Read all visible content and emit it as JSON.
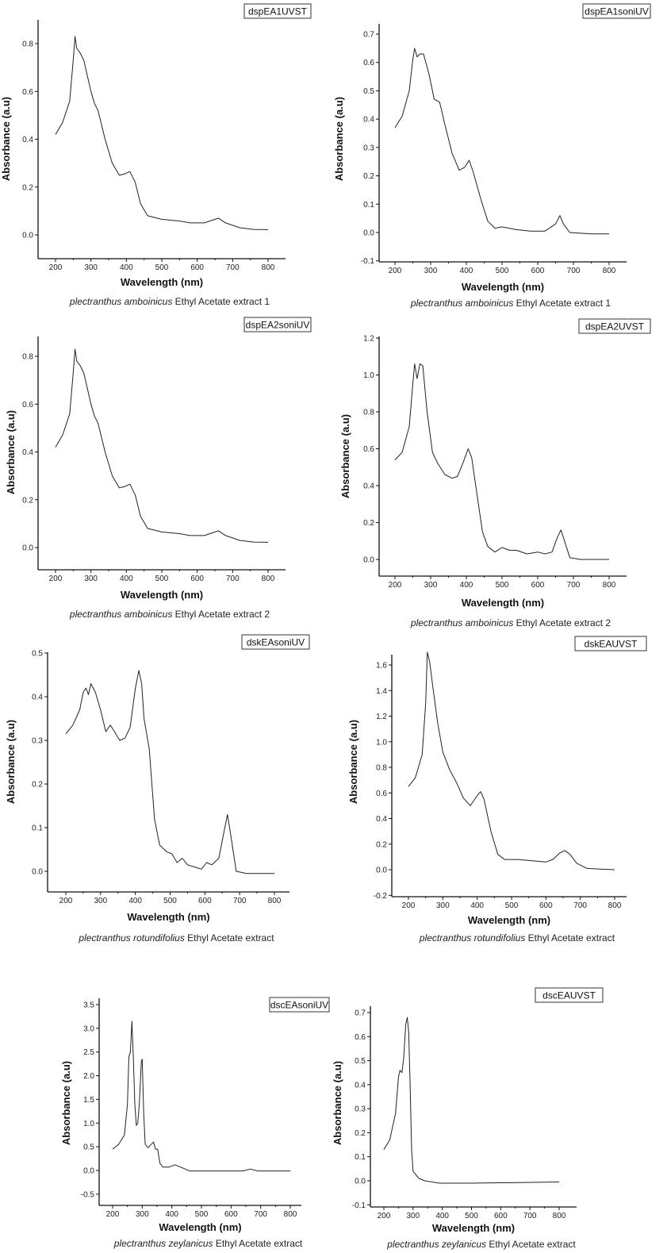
{
  "chart_data": [
    {
      "type": "line",
      "legend": "dspEA1UVST",
      "xlabel": "Wavelength (nm)",
      "ylabel": "Absorbance (a.u)",
      "caption_species": "plectranthus  amboinicus",
      "caption_rest": " Ethyl Acetate extract 1",
      "xticks": [
        200,
        300,
        400,
        500,
        600,
        700,
        800
      ],
      "yticks": [
        0.0,
        0.2,
        0.4,
        0.6,
        0.8
      ],
      "xlim": [
        150,
        850
      ],
      "ylim": [
        -0.1,
        0.9
      ],
      "legend_position": "top-right",
      "grid": false,
      "x": [
        200,
        220,
        240,
        250,
        255,
        260,
        270,
        280,
        300,
        310,
        320,
        340,
        360,
        380,
        395,
        410,
        425,
        440,
        460,
        500,
        550,
        580,
        620,
        640,
        660,
        680,
        720,
        760,
        800
      ],
      "y": [
        0.42,
        0.47,
        0.56,
        0.73,
        0.83,
        0.78,
        0.76,
        0.73,
        0.6,
        0.55,
        0.52,
        0.4,
        0.3,
        0.25,
        0.255,
        0.265,
        0.22,
        0.13,
        0.08,
        0.065,
        0.058,
        0.05,
        0.05,
        0.06,
        0.07,
        0.05,
        0.03,
        0.023,
        0.022
      ]
    },
    {
      "type": "line",
      "legend": "dspEA1soniUV",
      "xlabel": "Wavelength (nm)",
      "ylabel": "Absorbance (a.u)",
      "caption_species": "plectranthus  amboinicus",
      "caption_rest": " Ethyl Acetate extract 1",
      "xticks": [
        200,
        300,
        400,
        500,
        600,
        700,
        800
      ],
      "yticks": [
        -0.1,
        0.0,
        0.1,
        0.2,
        0.3,
        0.4,
        0.5,
        0.6,
        0.7
      ],
      "xlim": [
        150,
        850
      ],
      "ylim": [
        -0.1,
        0.75
      ],
      "legend_position": "top-right",
      "grid": false,
      "x": [
        200,
        220,
        240,
        250,
        255,
        262,
        270,
        280,
        295,
        310,
        325,
        340,
        360,
        380,
        395,
        408,
        420,
        440,
        460,
        480,
        500,
        540,
        580,
        620,
        650,
        662,
        672,
        690,
        750,
        800
      ],
      "y": [
        0.37,
        0.41,
        0.5,
        0.61,
        0.65,
        0.62,
        0.63,
        0.63,
        0.56,
        0.47,
        0.46,
        0.38,
        0.28,
        0.22,
        0.23,
        0.255,
        0.21,
        0.12,
        0.04,
        0.015,
        0.02,
        0.01,
        0.005,
        0.005,
        0.03,
        0.06,
        0.03,
        0.0,
        -0.005,
        -0.005
      ]
    },
    {
      "type": "line",
      "legend": "dspEA2soniUV",
      "xlabel": "Wavelength (nm)",
      "ylabel": "Absorbance (a.u)",
      "caption_species": "plectranthus  amboinicus",
      "caption_rest": " Ethyl Acetate extract 2",
      "xticks": [
        200,
        300,
        400,
        500,
        600,
        700,
        800
      ],
      "yticks": [
        0.0,
        0.2,
        0.4,
        0.6,
        0.8
      ],
      "xlim": [
        150,
        850
      ],
      "ylim": [
        -0.1,
        0.9
      ],
      "legend_position": "top-right",
      "grid": false,
      "x": [
        200,
        220,
        240,
        250,
        255,
        260,
        270,
        280,
        300,
        310,
        320,
        340,
        360,
        380,
        395,
        410,
        425,
        440,
        460,
        500,
        550,
        580,
        620,
        640,
        660,
        680,
        720,
        760,
        800
      ],
      "y": [
        0.42,
        0.47,
        0.56,
        0.73,
        0.83,
        0.78,
        0.76,
        0.73,
        0.6,
        0.55,
        0.52,
        0.4,
        0.3,
        0.25,
        0.255,
        0.265,
        0.22,
        0.13,
        0.08,
        0.065,
        0.058,
        0.05,
        0.05,
        0.06,
        0.07,
        0.05,
        0.03,
        0.023,
        0.022
      ]
    },
    {
      "type": "line",
      "legend": "dspEA2UVST",
      "xlabel": "Wavelength (nm)",
      "ylabel": "Absorbance (a.u)",
      "caption_species": "plectranthus  amboinicus",
      "caption_rest": " Ethyl Acetate extract 2",
      "xticks": [
        200,
        300,
        400,
        500,
        600,
        700,
        800
      ],
      "yticks": [
        0.0,
        0.2,
        0.4,
        0.6,
        0.8,
        1.0,
        1.2
      ],
      "xlim": [
        150,
        850
      ],
      "ylim": [
        -0.1,
        1.25
      ],
      "legend_position": "top-right",
      "grid": false,
      "x": [
        200,
        220,
        240,
        250,
        255,
        262,
        270,
        278,
        290,
        305,
        320,
        340,
        360,
        375,
        390,
        405,
        415,
        430,
        445,
        460,
        480,
        500,
        520,
        540,
        570,
        600,
        620,
        640,
        655,
        665,
        675,
        690,
        720,
        800
      ],
      "y": [
        0.54,
        0.58,
        0.72,
        0.95,
        1.06,
        0.98,
        1.06,
        1.05,
        0.8,
        0.58,
        0.52,
        0.46,
        0.44,
        0.45,
        0.52,
        0.6,
        0.55,
        0.35,
        0.15,
        0.07,
        0.04,
        0.065,
        0.05,
        0.05,
        0.03,
        0.04,
        0.03,
        0.04,
        0.12,
        0.16,
        0.1,
        0.01,
        0.0,
        0.0
      ]
    },
    {
      "type": "line",
      "legend": "dskEAsoniUV",
      "xlabel": "Wavelength (nm)",
      "ylabel": "Absorbance (a.u)",
      "caption_species": "plectranthus  rotundifolius",
      "caption_rest": " Ethyl Acetate extract",
      "xticks": [
        200,
        300,
        400,
        500,
        600,
        700,
        800
      ],
      "yticks": [
        0.0,
        0.1,
        0.2,
        0.3,
        0.4,
        0.5
      ],
      "xlim": [
        150,
        850
      ],
      "ylim": [
        -0.05,
        0.52
      ],
      "legend_position": "top-right",
      "grid": false,
      "x": [
        200,
        220,
        240,
        250,
        258,
        265,
        272,
        285,
        300,
        315,
        328,
        340,
        355,
        370,
        385,
        400,
        410,
        418,
        425,
        440,
        455,
        470,
        490,
        505,
        520,
        535,
        550,
        570,
        590,
        605,
        620,
        640,
        655,
        665,
        675,
        690,
        720,
        800
      ],
      "y": [
        0.315,
        0.335,
        0.37,
        0.41,
        0.42,
        0.405,
        0.43,
        0.41,
        0.37,
        0.32,
        0.335,
        0.32,
        0.3,
        0.305,
        0.33,
        0.42,
        0.46,
        0.43,
        0.35,
        0.28,
        0.12,
        0.06,
        0.045,
        0.04,
        0.02,
        0.03,
        0.015,
        0.01,
        0.005,
        0.02,
        0.015,
        0.03,
        0.09,
        0.13,
        0.08,
        0.0,
        -0.005,
        -0.005
      ]
    },
    {
      "type": "line",
      "legend": "dskEAUVST",
      "xlabel": "Wavelength (nm)",
      "ylabel": "Absorbance (a.u)",
      "caption_species": "plectranthus  rotundifolius",
      "caption_rest": " Ethyl Acetate extract",
      "xticks": [
        200,
        300,
        400,
        500,
        600,
        700,
        800
      ],
      "yticks": [
        -0.2,
        0.0,
        0.2,
        0.4,
        0.6,
        0.8,
        1.0,
        1.2,
        1.4,
        1.6
      ],
      "xlim": [
        150,
        850
      ],
      "ylim": [
        -0.25,
        1.75
      ],
      "legend_position": "top-right",
      "grid": false,
      "x": [
        200,
        220,
        240,
        250,
        255,
        262,
        270,
        285,
        300,
        320,
        340,
        360,
        380,
        400,
        410,
        420,
        440,
        460,
        480,
        520,
        560,
        600,
        620,
        640,
        655,
        670,
        690,
        720,
        800
      ],
      "y": [
        0.65,
        0.72,
        0.9,
        1.3,
        1.7,
        1.62,
        1.45,
        1.15,
        0.92,
        0.78,
        0.68,
        0.56,
        0.5,
        0.58,
        0.61,
        0.55,
        0.3,
        0.12,
        0.08,
        0.08,
        0.07,
        0.06,
        0.08,
        0.13,
        0.15,
        0.12,
        0.05,
        0.01,
        0.0
      ]
    },
    {
      "type": "line",
      "legend": "dscEAsoniUV",
      "xlabel": "Wavelength (nm)",
      "ylabel": "Absorbance (a.u)",
      "caption_species": "plectranthus  zeylanicus",
      "caption_rest": " Ethyl Acetate extract",
      "xticks": [
        200,
        300,
        400,
        500,
        600,
        700,
        800
      ],
      "yticks": [
        -0.5,
        0.0,
        0.5,
        1.0,
        1.5,
        2.0,
        2.5,
        3.0,
        3.5
      ],
      "xlim": [
        150,
        850
      ],
      "ylim": [
        -0.5,
        3.6
      ],
      "legend_position": "top-right",
      "grid": false,
      "x": [
        200,
        220,
        240,
        250,
        255,
        260,
        265,
        270,
        275,
        280,
        285,
        290,
        297,
        300,
        305,
        310,
        320,
        330,
        338,
        345,
        352,
        360,
        370,
        390,
        410,
        430,
        460,
        640,
        665,
        690,
        800
      ],
      "y": [
        0.45,
        0.55,
        0.75,
        1.4,
        2.4,
        2.5,
        3.15,
        2.4,
        1.4,
        0.95,
        1.0,
        1.4,
        2.3,
        2.35,
        1.2,
        0.55,
        0.48,
        0.55,
        0.6,
        0.45,
        0.45,
        0.15,
        0.07,
        0.07,
        0.12,
        0.07,
        -0.01,
        -0.01,
        0.03,
        -0.01,
        -0.01
      ]
    },
    {
      "type": "line",
      "legend": "dscEAUVST",
      "xlabel": "Wavelength (nm)",
      "ylabel": "Absorbance (a.u)",
      "caption_species": "plectranthus  zeylanicus",
      "caption_rest": " Ethyl Acetate extract",
      "xticks": [
        200,
        300,
        400,
        500,
        600,
        700,
        800
      ],
      "yticks": [
        -0.1,
        0.0,
        0.1,
        0.2,
        0.3,
        0.4,
        0.5,
        0.6,
        0.7
      ],
      "xlim": [
        150,
        850
      ],
      "ylim": [
        -0.1,
        0.75
      ],
      "legend_position": "top-right",
      "grid": false,
      "x": [
        200,
        220,
        240,
        250,
        255,
        262,
        268,
        275,
        280,
        285,
        290,
        295,
        300,
        320,
        340,
        390,
        500,
        800
      ],
      "y": [
        0.13,
        0.17,
        0.28,
        0.43,
        0.46,
        0.45,
        0.51,
        0.65,
        0.68,
        0.62,
        0.4,
        0.13,
        0.04,
        0.01,
        0.0,
        -0.01,
        -0.01,
        -0.005
      ]
    }
  ]
}
